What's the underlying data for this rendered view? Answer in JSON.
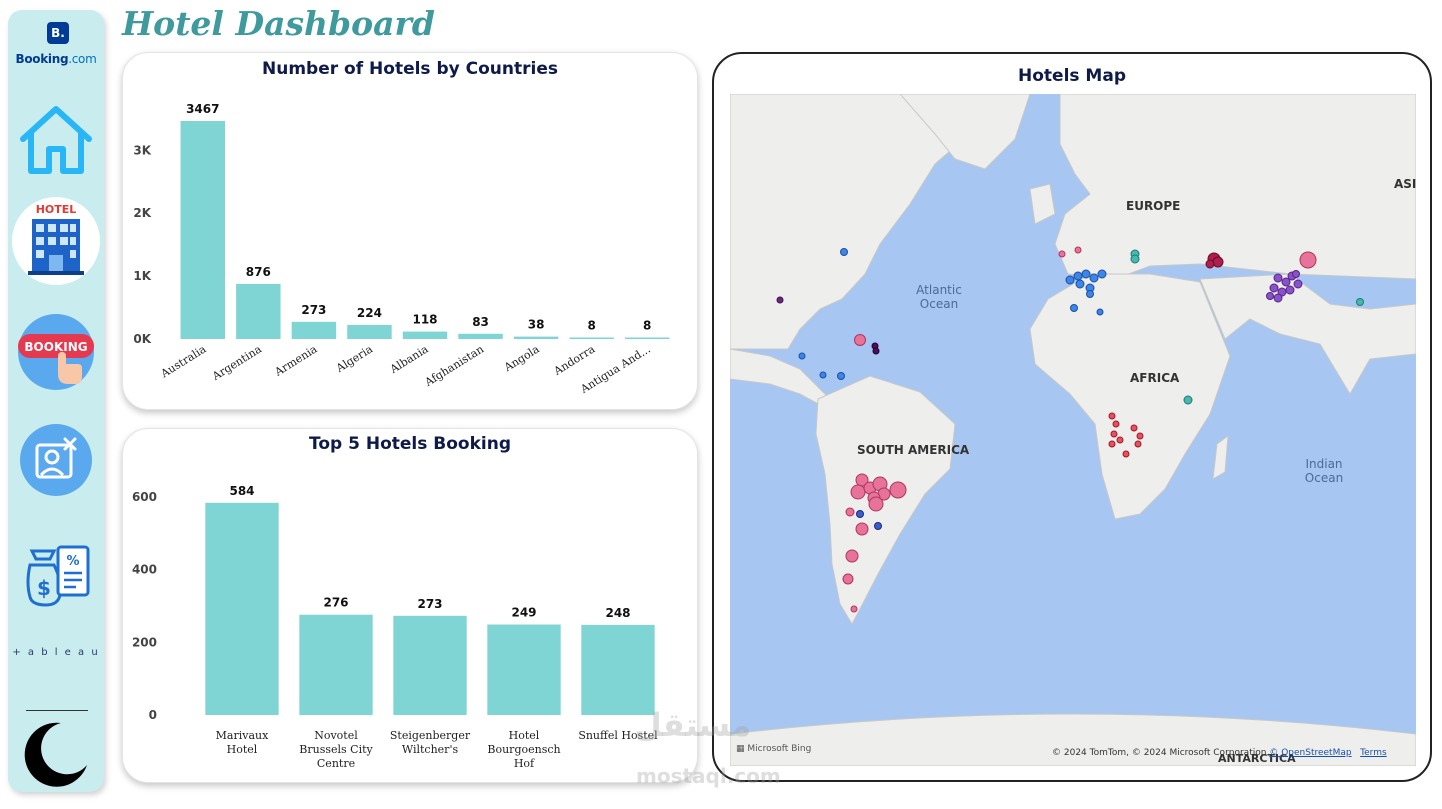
{
  "dashboard": {
    "title": "Hotel Dashboard"
  },
  "sidebar": {
    "logo": {
      "badge": "B.",
      "brand_main": "Booking",
      "brand_suffix": ".com"
    },
    "items": [
      {
        "name": "home",
        "icon": "home-icon"
      },
      {
        "name": "hotel",
        "icon": "hotel-building-icon",
        "label": "HOTEL"
      },
      {
        "name": "booking",
        "icon": "booking-hand-icon",
        "label": "BOOKING"
      },
      {
        "name": "user-cancel",
        "icon": "user-cancel-icon"
      },
      {
        "name": "pricing",
        "icon": "money-discount-icon"
      }
    ],
    "tableau_text": "+ a b l e a u",
    "theme_toggle": {
      "icon": "moon-icon"
    }
  },
  "colors": {
    "bar": "#7fd4d4",
    "accent": "#3f9a9d",
    "title": "#0e1a48",
    "sidebar": "#c9ecee",
    "map_water": "#a7c6f1",
    "map_land": "#eeeeec"
  },
  "hotels_by_country": {
    "title": "Number of Hotels by Countries",
    "chart_data": {
      "type": "bar",
      "title": "Number of Hotels by Countries",
      "categories": [
        "Australia",
        "Argentina",
        "Armenia",
        "Algeria",
        "Albania",
        "Afghanistan",
        "Angola",
        "Andorra",
        "Antigua And..."
      ],
      "values": [
        3467,
        876,
        273,
        224,
        118,
        83,
        38,
        8,
        8
      ],
      "value_labels": [
        "3467",
        "876",
        "273",
        "224",
        "118",
        "83",
        "38",
        "8",
        "8"
      ],
      "yticks": [
        0,
        1000,
        2000,
        3000
      ],
      "ytick_labels": [
        "0K",
        "1K",
        "2K",
        "3K"
      ],
      "ylim": [
        0,
        3467
      ],
      "grid": false,
      "legend": "none"
    }
  },
  "top_hotels": {
    "title": "Top 5 Hotels Booking",
    "chart_data": {
      "type": "bar",
      "title": "Top 5 Hotels Booking",
      "categories": [
        [
          "Marivaux",
          "Hotel"
        ],
        [
          "Novotel",
          "Brussels City",
          "Centre"
        ],
        [
          "Steigenberger",
          "Wiltcher's"
        ],
        [
          "Hotel",
          "Bourgoensch",
          "Hof"
        ],
        [
          "Snuffel Hostel"
        ]
      ],
      "values": [
        584,
        276,
        273,
        249,
        248
      ],
      "value_labels": [
        "584",
        "276",
        "273",
        "249",
        "248"
      ],
      "yticks": [
        0,
        200,
        400,
        600
      ],
      "ytick_labels": [
        "0",
        "200",
        "400",
        "600"
      ],
      "ylim": [
        0,
        600
      ],
      "grid": false,
      "legend": "none"
    }
  },
  "map": {
    "title": "Hotels Map",
    "labels": {
      "europe": "EUROPE",
      "asia": "ASIA",
      "africa": "AFRICA",
      "south_america": "SOUTH AMERICA",
      "antarctica": "ANTARCTICA",
      "atlantic_1": "Atlantic",
      "atlantic_2": "Ocean",
      "indian_1": "Indian",
      "indian_2": "Ocean"
    },
    "provider": "Microsoft Bing",
    "copyright": "© 2024 TomTom, © 2024 Microsoft Corporation",
    "osm_link": "© OpenStreetMap",
    "terms_link": "Terms"
  },
  "watermark": {
    "line1": "مستقل",
    "line2": "mostaql.com"
  }
}
